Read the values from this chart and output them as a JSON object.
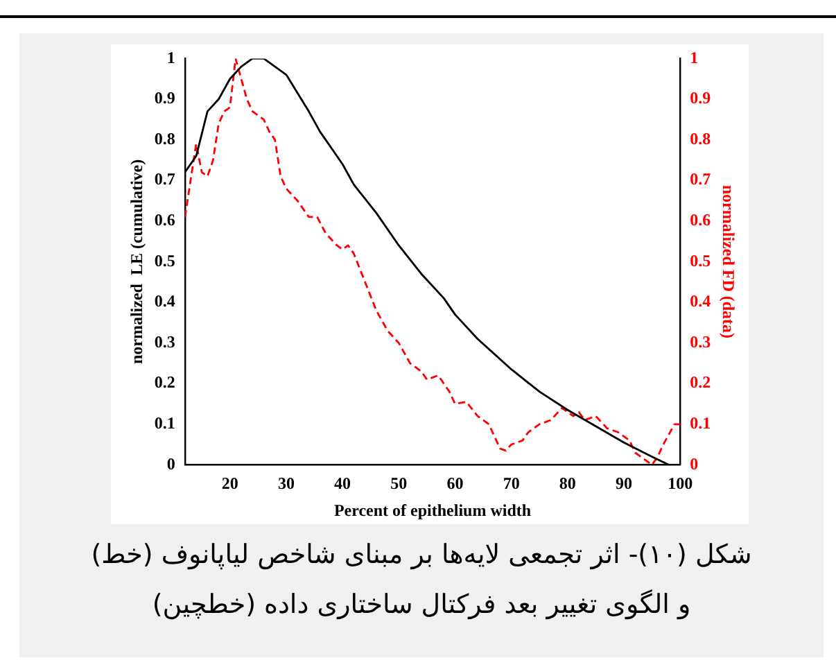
{
  "chart_data": {
    "type": "line",
    "xlabel": "Percent of epithelium width",
    "ylabel": "normalized  LE (cumulative)",
    "y2label": "normalized FD (data)",
    "xlim": [
      12,
      100
    ],
    "xticks": [
      20,
      30,
      40,
      50,
      60,
      70,
      80,
      90,
      100
    ],
    "ylim": [
      0,
      1
    ],
    "yticks": [
      0,
      0.1,
      0.2,
      0.3,
      0.4,
      0.5,
      0.6,
      0.7,
      0.8,
      0.9,
      1
    ],
    "y2lim": [
      0,
      1
    ],
    "y2ticks": [
      0,
      0.1,
      0.2,
      0.3,
      0.4,
      0.5,
      0.6,
      0.7,
      0.8,
      0.9,
      1
    ],
    "grid": false,
    "legend": false,
    "marker": "none",
    "series": [
      {
        "color": "#000000",
        "line_style": "solid",
        "x": [
          12,
          14,
          16,
          18,
          20,
          22,
          24,
          26,
          28,
          30,
          34,
          36,
          40,
          42,
          46,
          50,
          54,
          58,
          60,
          64,
          70,
          75,
          80,
          85,
          90,
          95,
          98
        ],
        "values": [
          0.72,
          0.76,
          0.87,
          0.9,
          0.95,
          0.98,
          1,
          1,
          0.98,
          0.96,
          0.87,
          0.82,
          0.74,
          0.69,
          0.62,
          0.54,
          0.47,
          0.41,
          0.37,
          0.31,
          0.235,
          0.18,
          0.135,
          0.095,
          0.055,
          0.02,
          0
        ]
      },
      {
        "color": "#ff0000",
        "line_style": "dashed",
        "axis": "y2",
        "x": [
          12,
          13,
          14,
          15,
          16,
          17,
          18,
          19,
          20,
          21,
          22,
          23,
          24,
          26,
          27,
          28,
          29,
          30,
          32,
          34,
          35.5,
          37,
          39,
          40,
          41,
          42,
          44,
          46,
          48,
          50,
          52,
          54,
          55,
          57,
          59,
          60,
          62,
          64,
          66,
          68,
          69,
          70,
          72,
          73,
          75,
          77,
          79,
          81,
          82,
          83,
          85,
          87,
          89,
          91,
          92,
          94,
          95,
          96,
          97,
          99,
          100
        ],
        "values": [
          0.61,
          0.7,
          0.79,
          0.72,
          0.71,
          0.75,
          0.84,
          0.87,
          0.88,
          1,
          0.95,
          0.9,
          0.87,
          0.85,
          0.82,
          0.8,
          0.71,
          0.68,
          0.65,
          0.61,
          0.61,
          0.57,
          0.54,
          0.53,
          0.54,
          0.52,
          0.45,
          0.38,
          0.33,
          0.3,
          0.25,
          0.23,
          0.21,
          0.22,
          0.18,
          0.15,
          0.155,
          0.12,
          0.1,
          0.04,
          0.035,
          0.05,
          0.06,
          0.08,
          0.1,
          0.11,
          0.14,
          0.12,
          0.13,
          0.11,
          0.12,
          0.09,
          0.08,
          0.06,
          0.03,
          0.01,
          0,
          0.02,
          0.05,
          0.1,
          0.1
        ]
      }
    ],
    "annotations": [
      "شکل (۱۰)- اثر تجمعی لایه‌ها بر مبنای شاخص لیاپانوف (خط) و الگوی تغییر بعد فرکتال ساختاری داده (خطچین)"
    ]
  }
}
